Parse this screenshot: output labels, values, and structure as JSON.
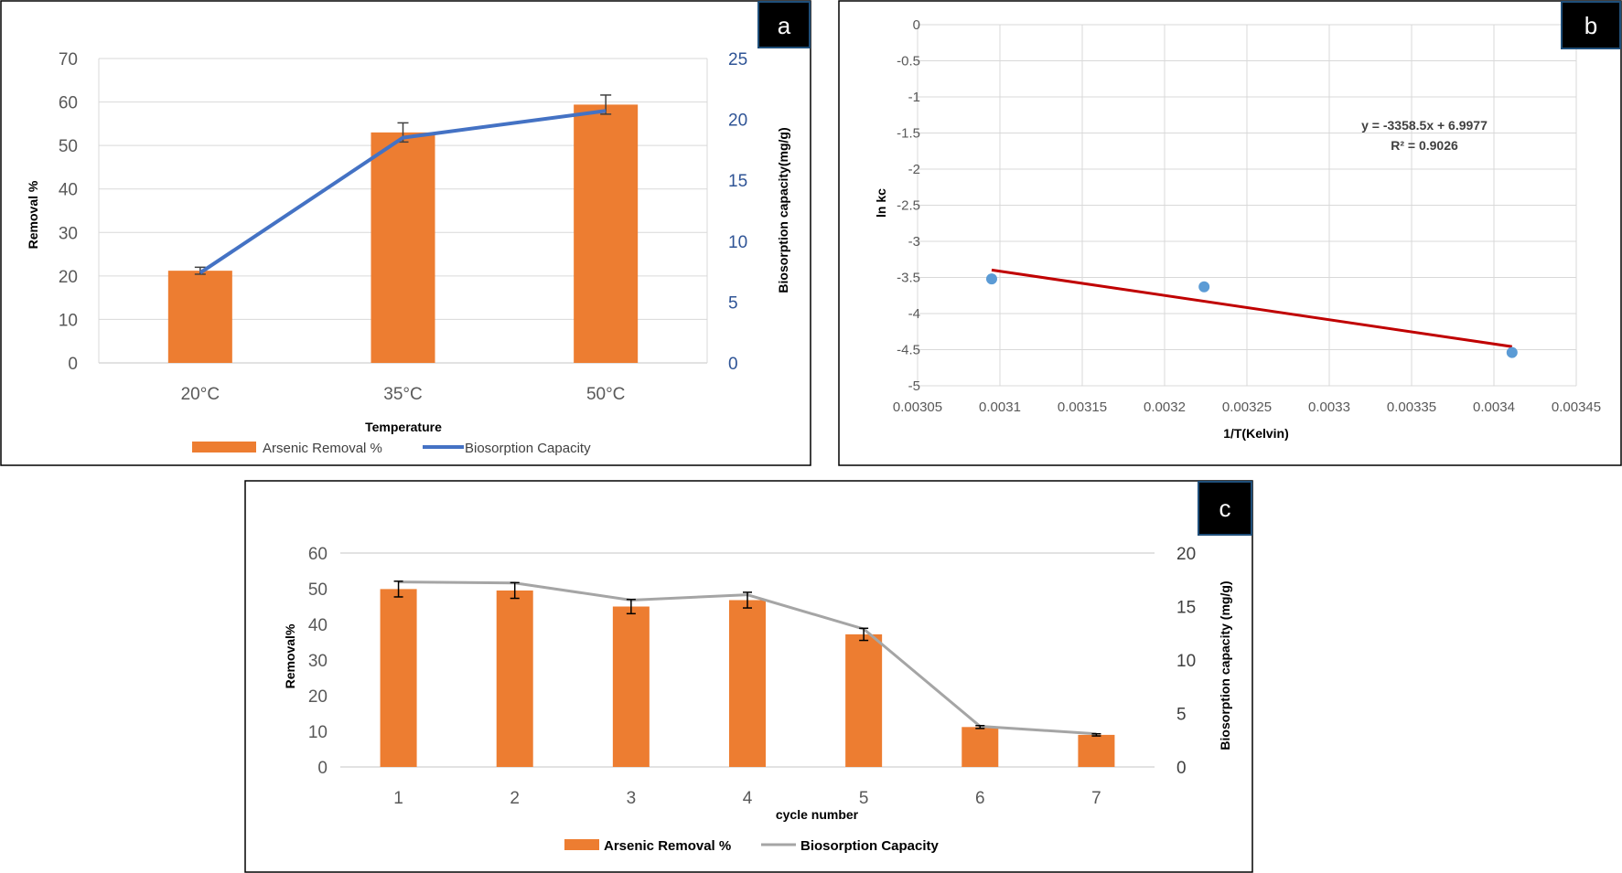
{
  "colors": {
    "bar": "#ed7d31",
    "line_a": "#4472c4",
    "line_c": "#a5a5a5",
    "scatter_point": "#5b9bd5",
    "trendline": "#c00000",
    "grid": "#d9d9d9",
    "tag_bg": "#000000",
    "tag_border": "#1f4e79"
  },
  "chart_data": [
    {
      "id": "a",
      "panel_label": "a",
      "type": "bar+line",
      "xlabel": "Temperature",
      "ylabel": "Removal %",
      "y2label": "Biosorption capacity(mg/g)",
      "categories": [
        "20°C",
        "35°C",
        "50°C"
      ],
      "ylim": [
        0,
        70
      ],
      "yticks": [
        0,
        10,
        20,
        30,
        40,
        50,
        60,
        70
      ],
      "y2lim": [
        0,
        25
      ],
      "y2ticks": [
        0,
        5,
        10,
        15,
        20,
        25
      ],
      "grid": true,
      "series": [
        {
          "name": "Arsenic Removal %",
          "kind": "bar",
          "axis": "left",
          "values": [
            21.2,
            53.0,
            59.4
          ],
          "errors": [
            0.8,
            2.2,
            2.2
          ]
        },
        {
          "name": "Biosorption Capacity",
          "kind": "line",
          "axis": "right",
          "values": [
            7.4,
            18.5,
            20.7
          ]
        }
      ],
      "legend_position": "bottom"
    },
    {
      "id": "b",
      "panel_label": "b",
      "type": "scatter",
      "xlabel": "1/T(Kelvin)",
      "ylabel": "ln kc",
      "xlim": [
        0.00305,
        0.00345
      ],
      "xticks": [
        0.00305,
        0.0031,
        0.00315,
        0.0032,
        0.00325,
        0.0033,
        0.00335,
        0.0034,
        0.00345
      ],
      "xtick_labels": [
        "0.00305",
        "0.0031",
        "0.00315",
        "0.0032",
        "0.00325",
        "0.0033",
        "0.00335",
        "0.0034",
        "0.00345"
      ],
      "ylim": [
        -5,
        0
      ],
      "yticks": [
        0,
        -0.5,
        -1,
        -1.5,
        -2,
        -2.5,
        -3,
        -3.5,
        -4,
        -4.5,
        -5
      ],
      "ytick_labels": [
        "0",
        "-0.5",
        "-1",
        "-1.5",
        "-2",
        "-2.5",
        "-3",
        "-3.5",
        "-4",
        "-4.5",
        "-5"
      ],
      "grid": true,
      "points": [
        {
          "x": 0.003095,
          "y": -3.52
        },
        {
          "x": 0.003224,
          "y": -3.63
        },
        {
          "x": 0.003411,
          "y": -4.54
        }
      ],
      "trendline": {
        "slope": -3358.5,
        "intercept": 6.9977,
        "x_start": 0.003095,
        "x_end": 0.003411
      },
      "equation": "y = -3358.5x + 6.9977",
      "r_squared": "R² = 0.9026"
    },
    {
      "id": "c",
      "panel_label": "c",
      "type": "bar+line",
      "xlabel": "cycle number",
      "ylabel": "Removal%",
      "y2label": "Biosorption capacity (mg/g)",
      "categories": [
        "1",
        "2",
        "3",
        "4",
        "5",
        "6",
        "7"
      ],
      "ylim": [
        0,
        60
      ],
      "yticks": [
        0,
        10,
        20,
        30,
        40,
        50,
        60
      ],
      "y2lim": [
        0,
        20
      ],
      "y2ticks": [
        0,
        5,
        10,
        15,
        20
      ],
      "grid": false,
      "series": [
        {
          "name": "Arsenic Removal %",
          "kind": "bar",
          "axis": "left",
          "values": [
            49.9,
            49.5,
            45.0,
            46.8,
            37.2,
            11.2,
            9.0
          ],
          "errors": [
            2.2,
            2.2,
            2.0,
            2.2,
            1.7,
            0.4,
            0.3
          ]
        },
        {
          "name": "Biosorption Capacity",
          "kind": "line",
          "axis": "right",
          "values": [
            17.3,
            17.2,
            15.6,
            16.1,
            12.9,
            3.8,
            3.1
          ]
        }
      ],
      "legend_position": "bottom"
    }
  ]
}
